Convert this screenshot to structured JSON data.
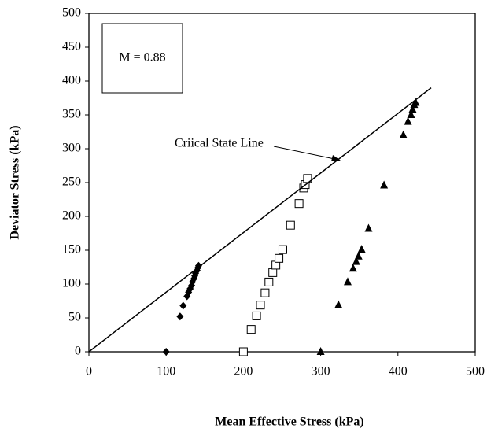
{
  "chart_data": {
    "type": "scatter",
    "xlabel": "Mean Effective Stress (kPa)",
    "ylabel": "Deviator Stress (kPa)",
    "annotations": [
      "M = 0.88",
      "Criical State Line"
    ],
    "xlim": [
      0,
      500
    ],
    "xticks": [
      0,
      100,
      200,
      300,
      400,
      500
    ],
    "ylim": [
      0,
      500
    ],
    "yticks": [
      0,
      50,
      100,
      150,
      200,
      250,
      300,
      350,
      400,
      450,
      500
    ],
    "series": [
      {
        "marker": "diamond",
        "color": "#000000",
        "x": [
          100,
          118,
          122,
          127,
          129,
          131,
          133,
          134,
          136,
          137,
          138,
          140,
          141,
          142
        ],
        "y": [
          0,
          52,
          68,
          82,
          88,
          93,
          98,
          103,
          108,
          112,
          116,
          120,
          124,
          127
        ]
      },
      {
        "marker": "square-open",
        "color": "#000000",
        "x": [
          200,
          210,
          217,
          222,
          228,
          233,
          238,
          242,
          246,
          251,
          261,
          272,
          278,
          280,
          283
        ],
        "y": [
          0,
          33,
          53,
          69,
          87,
          103,
          117,
          128,
          138,
          151,
          187,
          219,
          242,
          247,
          256
        ]
      },
      {
        "marker": "triangle",
        "color": "#000000",
        "x": [
          300,
          323,
          335,
          342,
          346,
          349,
          353,
          362,
          382,
          407,
          413,
          417,
          419,
          421,
          423
        ],
        "y": [
          0,
          69,
          103,
          123,
          133,
          141,
          151,
          182,
          246,
          320,
          340,
          350,
          358,
          365,
          368
        ]
      },
      {
        "marker": "line",
        "color": "#000000",
        "x": [
          0,
          443
        ],
        "y": [
          0,
          390
        ]
      }
    ]
  }
}
